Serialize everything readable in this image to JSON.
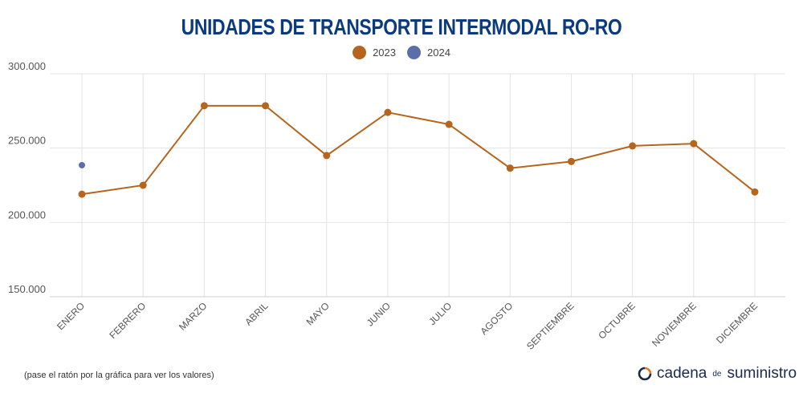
{
  "title": "UNIDADES DE TRANSPORTE INTERMODAL RO-RO",
  "footnote": "(pase el ratón por la gráfica para ver los valores)",
  "brand": {
    "part1": "cadena",
    "part2": "de",
    "part3": "suministro"
  },
  "colors": {
    "series2023": "#b5651d",
    "series2024": "#5c6ea9",
    "title": "#0b3a7e",
    "grid": "#dddddd"
  },
  "chart_data": {
    "type": "line",
    "title": "UNIDADES DE TRANSPORTE INTERMODAL RO-RO",
    "categories": [
      "ENERO",
      "FEBRERO",
      "MARZO",
      "ABRIL",
      "MAYO",
      "JUNIO",
      "JULIO",
      "AGOSTO",
      "SEPTIEMBRE",
      "OCTUBRE",
      "NOVIEMBRE",
      "DICIEMBRE"
    ],
    "series": [
      {
        "name": "2023",
        "values": [
          219000,
          225000,
          278500,
          278500,
          245000,
          274000,
          266000,
          236500,
          241000,
          251500,
          253000,
          220500
        ]
      },
      {
        "name": "2024",
        "values": [
          238500,
          null,
          null,
          null,
          null,
          null,
          null,
          null,
          null,
          null,
          null,
          null
        ]
      }
    ],
    "yticks": [
      "150.000",
      "200.000",
      "250.000",
      "300.000"
    ],
    "ylim": [
      150000,
      300000
    ],
    "grid": true,
    "legend": "top-center"
  }
}
